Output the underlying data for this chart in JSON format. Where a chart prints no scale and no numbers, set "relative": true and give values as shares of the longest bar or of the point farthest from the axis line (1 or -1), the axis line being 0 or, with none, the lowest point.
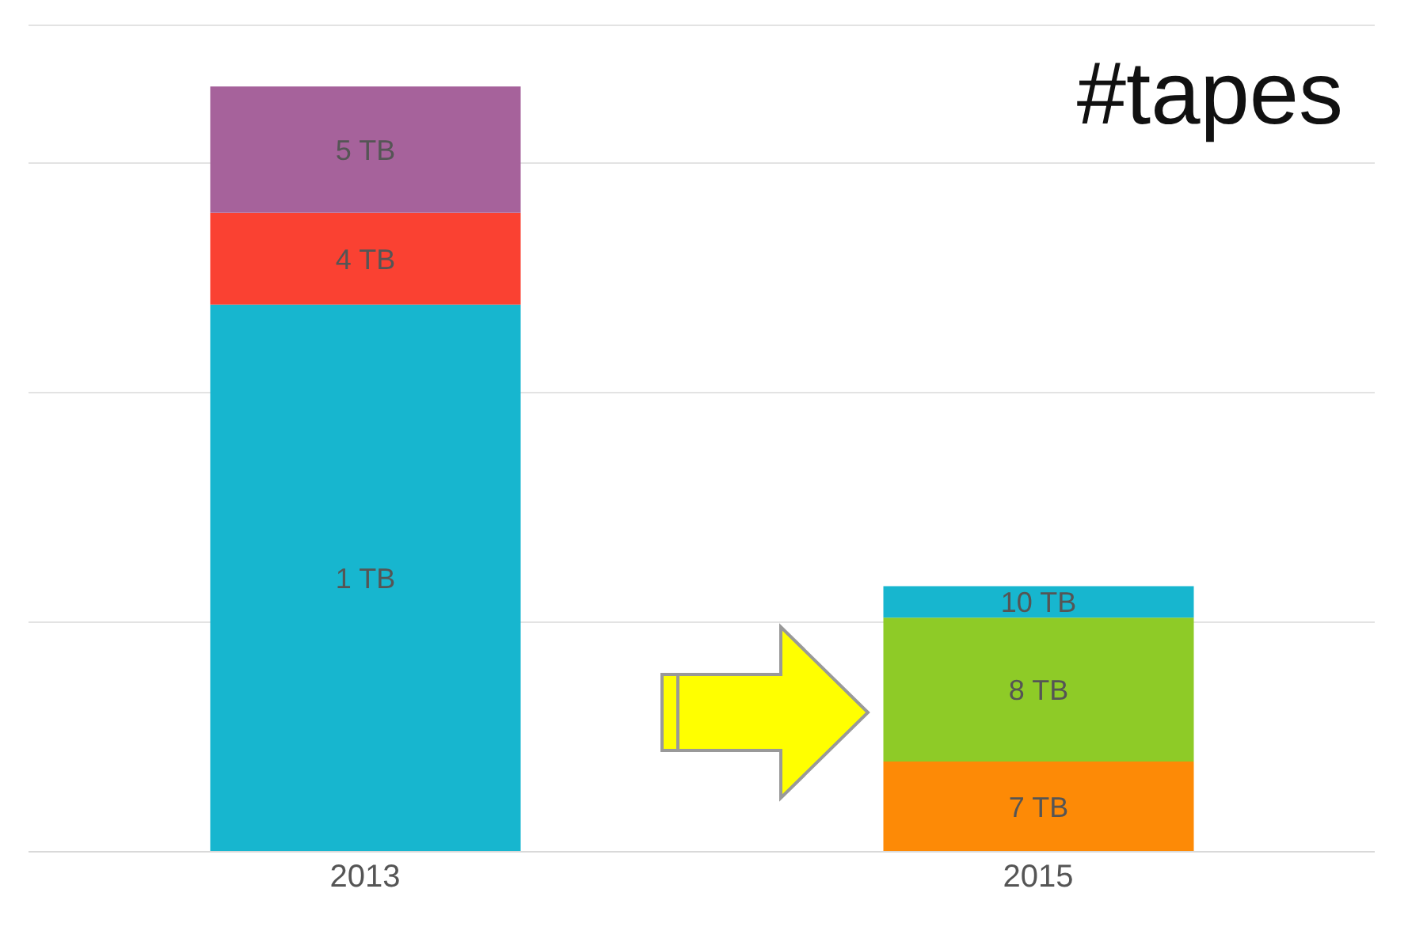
{
  "chart_data": {
    "type": "bar",
    "title": "#tapes",
    "categories": [
      "2013",
      "2015"
    ],
    "stacked": true,
    "relative": true,
    "grid": "y",
    "series": [
      {
        "name": "1 TB",
        "color": "#17b6cf",
        "values": [
          0.715,
          null
        ]
      },
      {
        "name": "7 TB",
        "color": "#fd8a06",
        "values": [
          null,
          0.118
        ]
      },
      {
        "name": "4 TB",
        "color": "#fa4132",
        "values": [
          0.12,
          null
        ]
      },
      {
        "name": "8 TB",
        "color": "#8ecb27",
        "values": [
          null,
          0.188
        ]
      },
      {
        "name": "5 TB",
        "color": "#a6629b",
        "values": [
          0.165,
          null
        ]
      },
      {
        "name": "10 TB",
        "color": "#17b6cf",
        "values": [
          null,
          0.041
        ]
      }
    ]
  }
}
